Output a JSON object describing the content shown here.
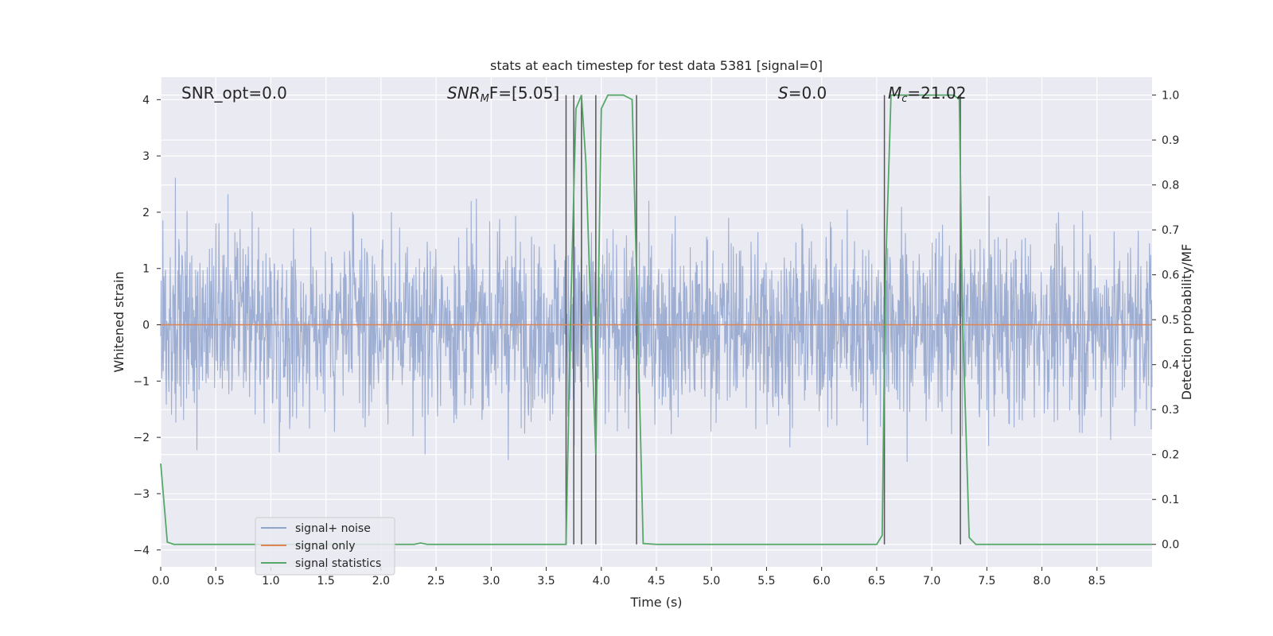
{
  "chart_data": {
    "type": "line",
    "title": "stats at each timestep for test data 5381 [signal=0]",
    "xlabel": "Time (s)",
    "ylabel": "Whitened strain",
    "ylabel_right": "Detection probability/MF",
    "xlim": [
      0,
      9.0
    ],
    "ylim": [
      -4.3,
      4.4
    ],
    "ylim_right": [
      -0.05,
      1.04
    ],
    "x_ticks": [
      "0.0",
      "0.5",
      "1.0",
      "1.5",
      "2.0",
      "2.5",
      "3.0",
      "3.5",
      "4.0",
      "4.5",
      "5.0",
      "5.5",
      "6.0",
      "6.5",
      "7.0",
      "7.5",
      "8.0",
      "8.5"
    ],
    "y_ticks": [
      "4",
      "3",
      "2",
      "1",
      "0",
      "−1",
      "−2",
      "−3",
      "−4"
    ],
    "y_ticks_right": [
      "1.0",
      "0.9",
      "0.8",
      "0.7",
      "0.6",
      "0.5",
      "0.4",
      "0.3",
      "0.2",
      "0.1",
      "0.0"
    ],
    "grid": true,
    "legend_placement": "lower-left",
    "annotations": {
      "snr_opt": "SNR_opt=0.0",
      "snr_mf_base": "SNR",
      "snr_mf_sub": "M",
      "snr_mf_rest": "F=[5.05]",
      "s_base": "S",
      "s_rest": "=0.0",
      "mc_base": "M",
      "mc_sub": "c",
      "mc_rest": "=21.02"
    },
    "series": [
      {
        "name": "signal+ noise",
        "color": "#8fa3cc",
        "note": "dense noise trace, amplitude mostly within ±2.5"
      },
      {
        "name": "signal only",
        "color": "#dd8452",
        "values_constant": 0
      },
      {
        "name": "signal statistics",
        "color": "#55a868",
        "axis": "right",
        "x": [
          0.0,
          0.06,
          0.12,
          0.5,
          1.0,
          1.5,
          2.0,
          2.3,
          2.36,
          2.42,
          3.0,
          3.5,
          3.68,
          3.72,
          3.77,
          3.82,
          3.86,
          3.9,
          3.95,
          4.0,
          4.06,
          4.2,
          4.28,
          4.32,
          4.38,
          4.5,
          5.0,
          5.5,
          6.0,
          6.5,
          6.55,
          6.58,
          6.63,
          6.7,
          7.0,
          7.2,
          7.25,
          7.28,
          7.34,
          7.4,
          8.0,
          8.5,
          9.0
        ],
        "y": [
          0.18,
          0.005,
          0.0,
          0.0,
          0.0,
          0.0,
          0.0,
          0.0,
          0.003,
          0.0,
          0.0,
          0.0,
          0.0,
          0.5,
          0.97,
          1.0,
          0.85,
          0.55,
          0.2,
          0.97,
          1.0,
          1.0,
          0.99,
          0.6,
          0.002,
          0.0,
          0.0,
          0.0,
          0.0,
          0.0,
          0.02,
          0.6,
          1.0,
          1.0,
          1.0,
          1.0,
          0.99,
          0.5,
          0.015,
          0.0,
          0.0,
          0.0,
          0.0
        ]
      }
    ],
    "vlines": [
      3.68,
      3.75,
      3.82,
      3.95,
      4.32,
      6.57,
      7.26
    ]
  }
}
